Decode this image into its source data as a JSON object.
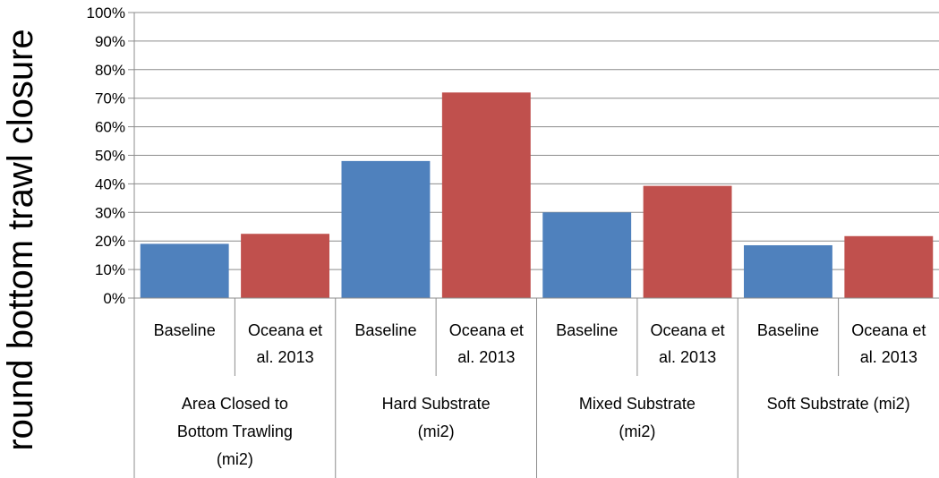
{
  "chart_data": {
    "type": "bar",
    "title": "",
    "xlabel": "",
    "ylabel": "round bottom trawl closure",
    "ylim": [
      0,
      100
    ],
    "y_ticks": [
      "0%",
      "10%",
      "20%",
      "30%",
      "40%",
      "50%",
      "60%",
      "70%",
      "80%",
      "90%",
      "100%"
    ],
    "grid": true,
    "legend": "none",
    "groups": [
      {
        "label_lines": [
          "Area Closed to",
          "Bottom Trawling",
          "(mi2)"
        ],
        "bars": [
          {
            "label_lines": [
              "Baseline"
            ],
            "value": 19,
            "color": "#4f81bd"
          },
          {
            "label_lines": [
              "Oceana et",
              "al. 2013"
            ],
            "value": 22.5,
            "color": "#c0504d"
          }
        ]
      },
      {
        "label_lines": [
          "Hard Substrate",
          "(mi2)"
        ],
        "bars": [
          {
            "label_lines": [
              "Baseline"
            ],
            "value": 48,
            "color": "#4f81bd"
          },
          {
            "label_lines": [
              "Oceana et",
              "al. 2013"
            ],
            "value": 72,
            "color": "#c0504d"
          }
        ]
      },
      {
        "label_lines": [
          "Mixed Substrate",
          "(mi2)"
        ],
        "bars": [
          {
            "label_lines": [
              "Baseline"
            ],
            "value": 30,
            "color": "#4f81bd"
          },
          {
            "label_lines": [
              "Oceana et",
              "al. 2013"
            ],
            "value": 39.3,
            "color": "#c0504d"
          }
        ]
      },
      {
        "label_lines": [
          "Soft Substrate (mi2)"
        ],
        "bars": [
          {
            "label_lines": [
              "Baseline"
            ],
            "value": 18.5,
            "color": "#4f81bd"
          },
          {
            "label_lines": [
              "Oceana et",
              "al. 2013"
            ],
            "value": 21.7,
            "color": "#c0504d"
          }
        ]
      }
    ]
  }
}
